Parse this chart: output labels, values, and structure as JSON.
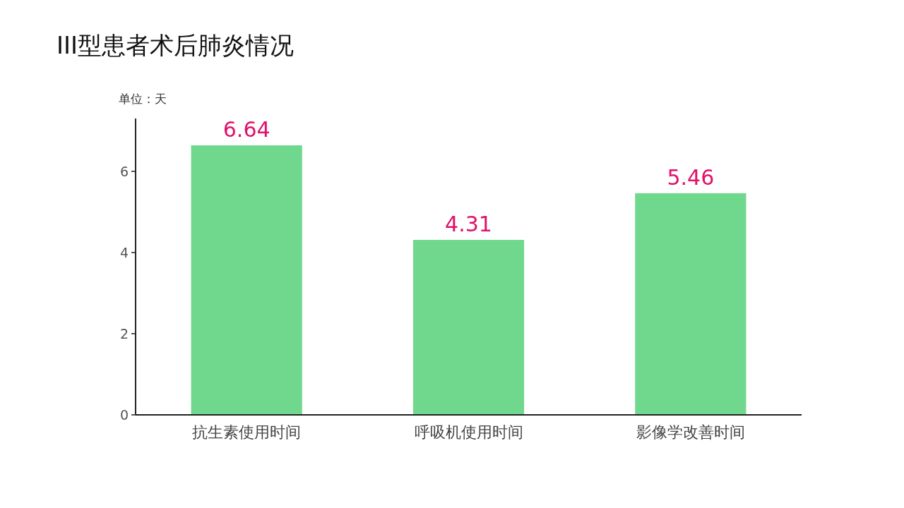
{
  "chart_data": {
    "type": "bar",
    "title": "III型患者术后肺炎情况",
    "ylabel": "单位：天",
    "categories": [
      "抗生素使用时间",
      "呼吸机使用时间",
      "影像学改善时间"
    ],
    "values": [
      6.64,
      4.31,
      5.46
    ],
    "color": "#6fd88d",
    "data_labels": true,
    "ylim": [
      0,
      7.3
    ],
    "yticks": [
      0,
      2,
      4,
      6
    ]
  }
}
